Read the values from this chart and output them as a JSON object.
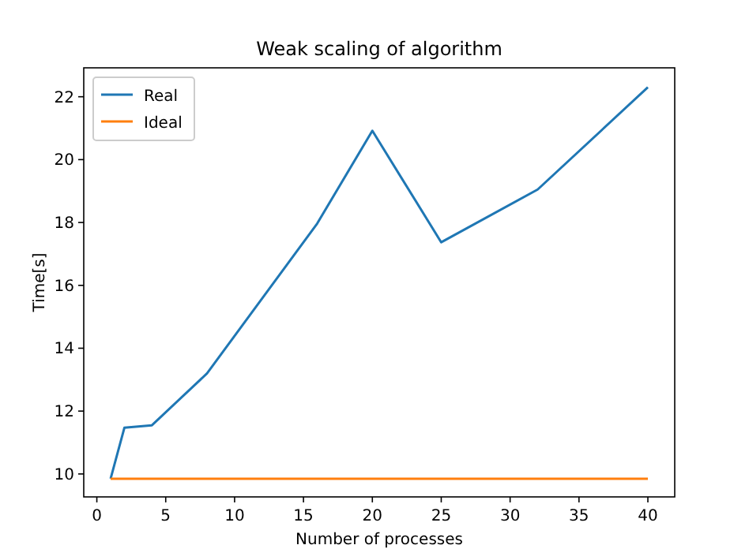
{
  "chart_data": {
    "type": "line",
    "title": "Weak scaling of algorithm",
    "xlabel": "Number of processes",
    "ylabel": "Time[s]",
    "x": [
      1,
      2,
      4,
      8,
      16,
      20,
      25,
      32,
      40
    ],
    "series": [
      {
        "name": "Real",
        "color": "#1f77b4",
        "values": [
          9.85,
          11.47,
          11.55,
          13.2,
          17.97,
          20.92,
          17.37,
          19.05,
          22.3
        ]
      },
      {
        "name": "Ideal",
        "color": "#ff7f0e",
        "values": [
          9.85,
          9.85,
          9.85,
          9.85,
          9.85,
          9.85,
          9.85,
          9.85,
          9.85
        ]
      }
    ],
    "xlim": [
      -0.95,
      41.95
    ],
    "ylim": [
      9.27,
      22.92
    ],
    "xticks": [
      0,
      5,
      10,
      15,
      20,
      25,
      30,
      35,
      40
    ],
    "yticks": [
      10,
      12,
      14,
      16,
      18,
      20,
      22
    ],
    "grid": false,
    "legend": "top left",
    "marker": "none",
    "line_style": "solid"
  }
}
